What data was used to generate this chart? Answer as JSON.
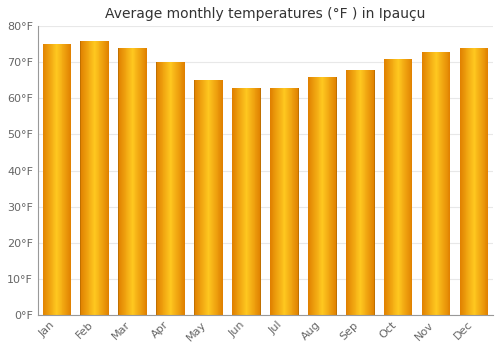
{
  "title": "Average monthly temperatures (°F ) in Ipauçu",
  "months": [
    "Jan",
    "Feb",
    "Mar",
    "Apr",
    "May",
    "Jun",
    "Jul",
    "Aug",
    "Sep",
    "Oct",
    "Nov",
    "Dec"
  ],
  "values": [
    75,
    76,
    74,
    70,
    65,
    63,
    63,
    66,
    68,
    71,
    73,
    74
  ],
  "bar_color_main": "#FFA500",
  "bar_color_light": "#FFD050",
  "bar_color_dark": "#E07800",
  "ylim": [
    0,
    80
  ],
  "yticks": [
    0,
    10,
    20,
    30,
    40,
    50,
    60,
    70,
    80
  ],
  "ytick_labels": [
    "0°F",
    "10°F",
    "20°F",
    "30°F",
    "40°F",
    "50°F",
    "60°F",
    "70°F",
    "80°F"
  ],
  "background_color": "#FFFFFF",
  "grid_color": "#E8E8E8",
  "title_fontsize": 10,
  "tick_fontsize": 8,
  "bar_width": 0.75
}
